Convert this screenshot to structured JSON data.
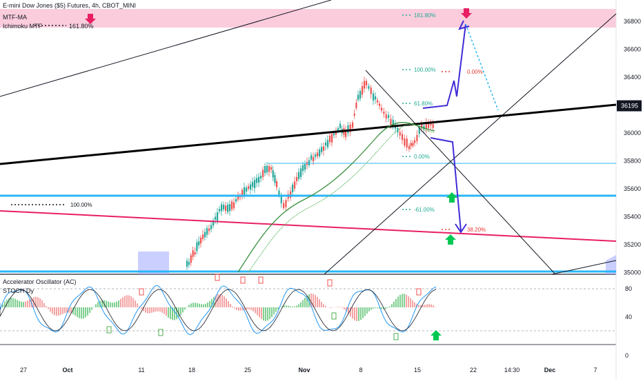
{
  "header": {
    "symbol": "E-mini Dow Jones ($5) Futures, 4h, CBOT_MINI",
    "ind_mtfma": "MTF-MA",
    "ind_ichimoku": "Ichimoku MTF",
    "ichimoku_fib_label": "161.80%"
  },
  "oscillator": {
    "label_ac": "Accelerator Oscillator (AC)",
    "label_stoch": "STOCH Dy"
  },
  "chart_data": {
    "type": "line",
    "price_ticks": [
      "36800",
      "36600",
      "36400",
      "36200",
      "36000",
      "35800",
      "35600",
      "35400",
      "35200",
      "35000"
    ],
    "price_range": [
      35000,
      36900
    ],
    "current_price": "36195",
    "osc_ticks": [
      "80",
      "40",
      "0"
    ],
    "osc_range": [
      0,
      100
    ],
    "x_ticks": [
      "27",
      "Oct",
      "11",
      "18",
      "25",
      "Nov",
      "8",
      "15",
      "22",
      "14:30",
      "Dec",
      "7"
    ],
    "fib_labels": [
      {
        "text": "161.80%",
        "price": 36850,
        "color": "#22ab94"
      },
      {
        "text": "100.00%",
        "price": 36440,
        "color": "#22ab94"
      },
      {
        "text": "61.80%",
        "price": 36220,
        "color": "#22ab94"
      },
      {
        "text": "0.00%",
        "price": 35830,
        "color": "#22ab94"
      },
      {
        "text": "-61.00%",
        "price": 35440,
        "color": "#22ab94"
      },
      {
        "text": "0.00%",
        "price": 36440,
        "color": "#e53935"
      },
      {
        "text": "38.20%",
        "price": 35290,
        "color": "#e53935"
      },
      {
        "text": "100.00%",
        "price": 35500,
        "color": "#131722"
      }
    ],
    "colors": {
      "up": "#26a69a",
      "down": "#ef5350",
      "trend": "#000000",
      "support": "#29b6f6",
      "pink_line": "#e91e63",
      "projection": "#3f2bd6",
      "zone": "#f8bbd0",
      "cloud": "#9fa8ff"
    }
  }
}
